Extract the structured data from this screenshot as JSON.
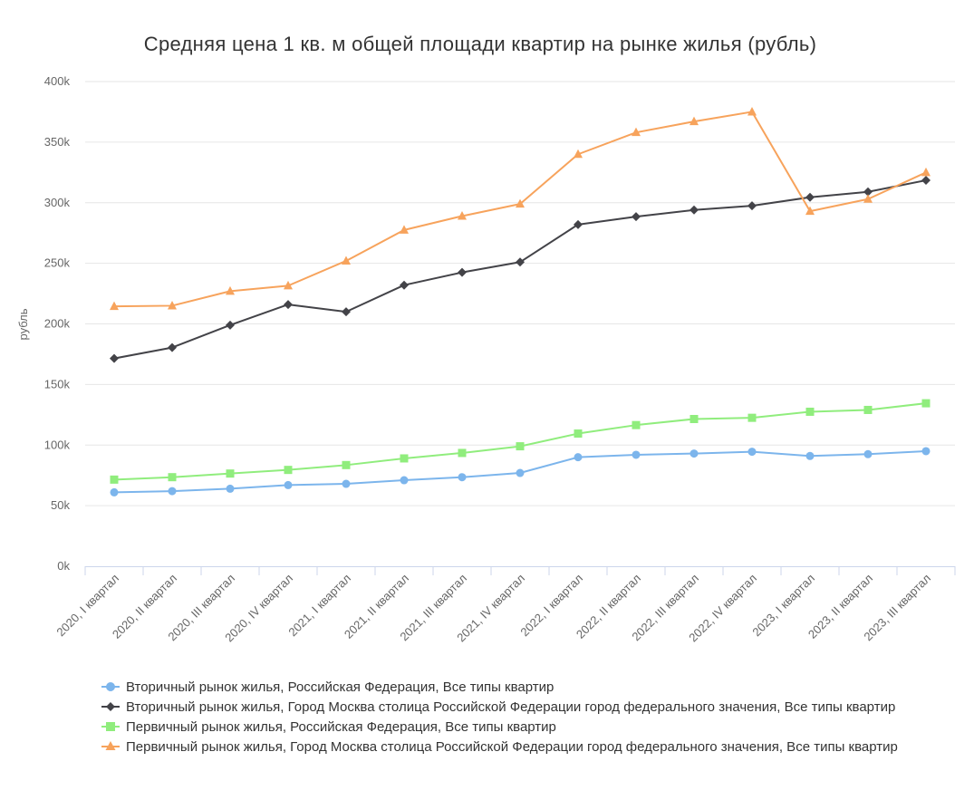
{
  "chart_data": {
    "type": "line",
    "title": "Средняя цена 1 кв. м общей площади квартир на рынке жилья (рубль)",
    "ylabel": "рубль",
    "xlabel": "",
    "ylim": [
      0,
      400000
    ],
    "yticks": [
      "0k",
      "50k",
      "100k",
      "150k",
      "200k",
      "250k",
      "300k",
      "350k",
      "400k"
    ],
    "grid": true,
    "legend_position": "bottom",
    "categories": [
      "2020, I квартал",
      "2020, II квартал",
      "2020, III квартал",
      "2020, IV квартал",
      "2021, I квартал",
      "2021, II квартал",
      "2021, III квартал",
      "2021, IV квартал",
      "2022, I квартал",
      "2022, II квартал",
      "2022, III квартал",
      "2022, IV квартал",
      "2023, I квартал",
      "2023, II квартал",
      "2023, III квартал"
    ],
    "series": [
      {
        "name": "Вторичный рынок жилья, Российская Федерация, Все типы квартир",
        "color": "#7cb5ec",
        "marker": "circle",
        "values": [
          61000,
          62000,
          64000,
          67000,
          68000,
          71000,
          73500,
          77000,
          90000,
          92000,
          93000,
          94500,
          91000,
          92500,
          95000
        ]
      },
      {
        "name": "Вторичный рынок жилья, Город Москва столица Российской Федерации город федерального значения, Все типы квартир",
        "color": "#434348",
        "marker": "diamond",
        "values": [
          171500,
          180500,
          199000,
          216000,
          210000,
          232000,
          242500,
          251000,
          282000,
          288500,
          294000,
          297500,
          304500,
          309000,
          318500
        ]
      },
      {
        "name": "Первичный рынок жилья, Российская Федерация, Все типы квартир",
        "color": "#90ed7d",
        "marker": "square",
        "values": [
          71500,
          73500,
          76500,
          79500,
          83500,
          89000,
          93500,
          99000,
          109500,
          116500,
          121500,
          122500,
          127500,
          129000,
          134500
        ]
      },
      {
        "name": "Первичный рынок жилья, Город Москва столица Российской Федерации город федерального значения, Все типы квартир",
        "color": "#f7a35c",
        "marker": "triangle",
        "values": [
          214500,
          215000,
          227000,
          231500,
          252000,
          277500,
          289000,
          299000,
          340000,
          358000,
          367000,
          375000,
          293000,
          303000,
          325000
        ]
      }
    ]
  }
}
